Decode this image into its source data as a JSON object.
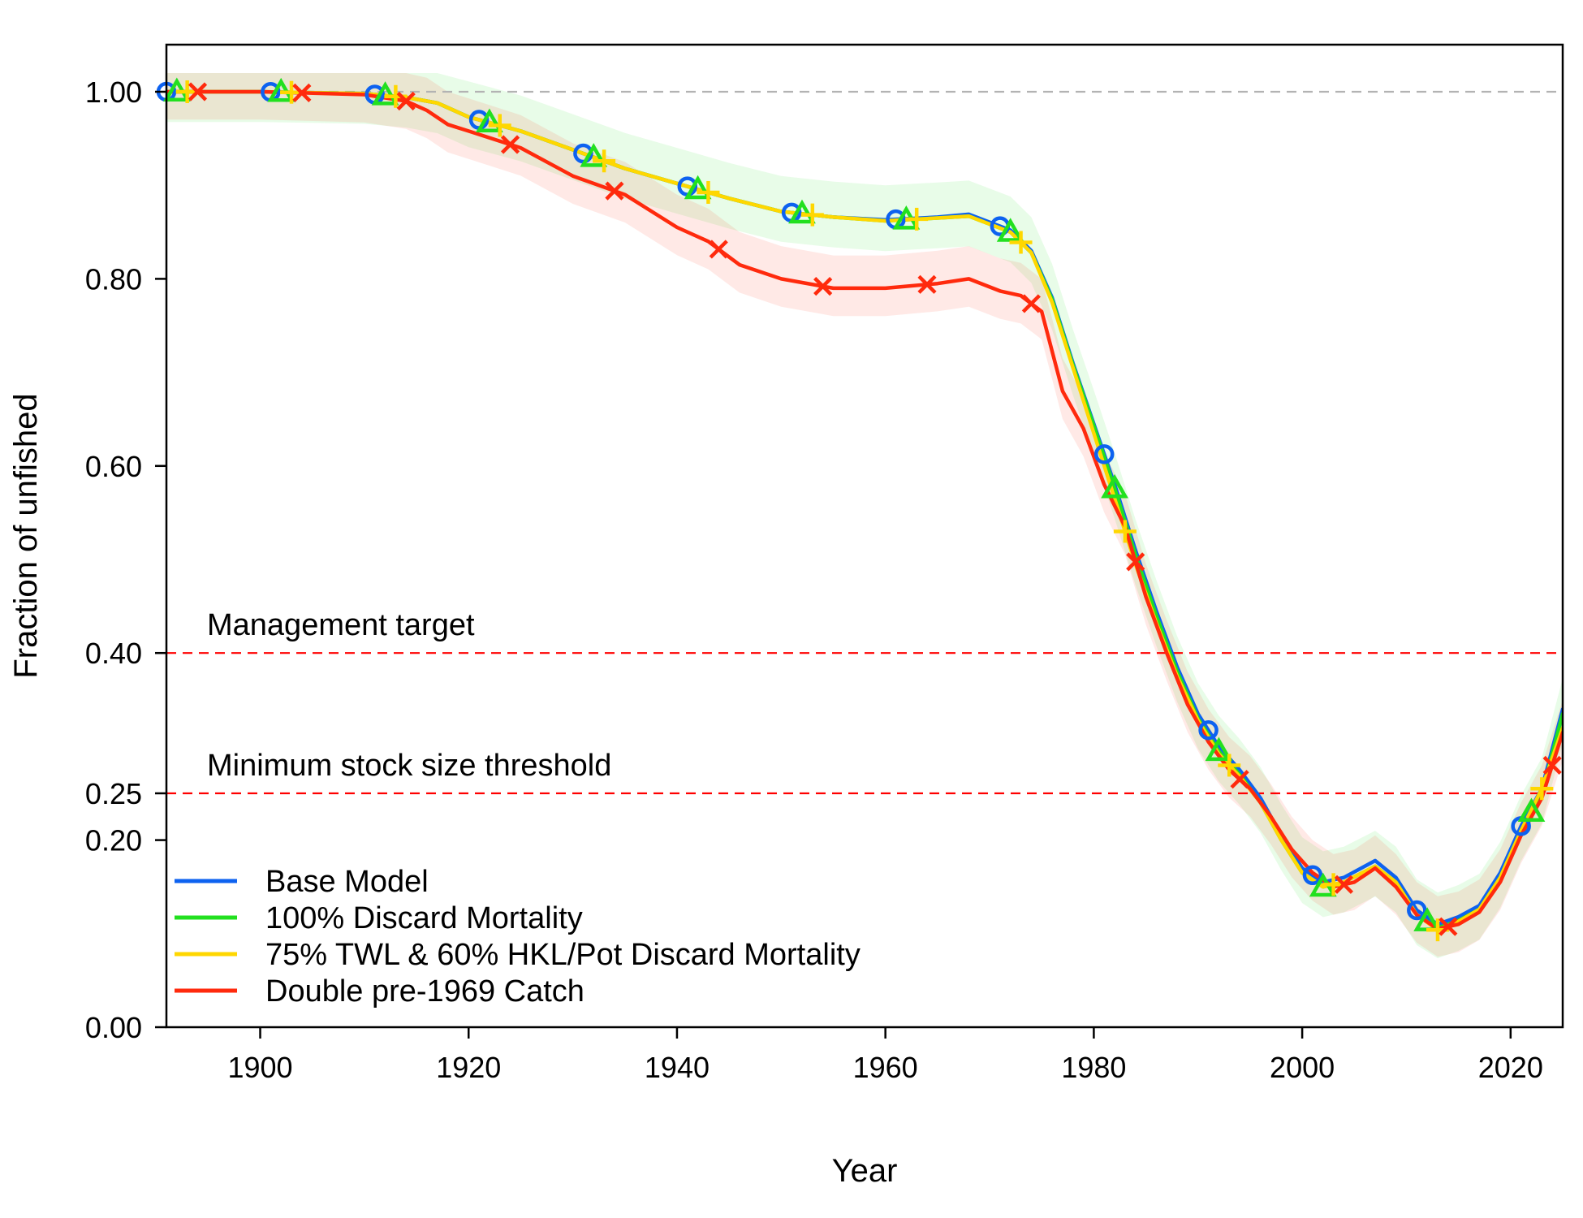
{
  "chart_data": {
    "type": "line",
    "title": "",
    "xlabel": "Year",
    "ylabel": "Fraction of unfished",
    "xlim": [
      1891,
      2025
    ],
    "ylim": [
      0,
      1.05
    ],
    "x_ticks": [
      1900,
      1920,
      1940,
      1960,
      1980,
      2000,
      2020
    ],
    "y_ticks": [
      0.0,
      0.2,
      0.25,
      0.4,
      0.6,
      0.8,
      1.0
    ],
    "y_tick_labels": [
      "0.00",
      "0.20",
      "0.25",
      "0.40",
      "0.60",
      "0.80",
      "1.00"
    ],
    "grid": false,
    "legend": "bottom-left",
    "reference_lines": [
      {
        "y": 1.0,
        "label": "",
        "color": "#b3b3b3"
      },
      {
        "y": 0.4,
        "label": "Management target",
        "color": "#ff0000"
      },
      {
        "y": 0.25,
        "label": "Minimum stock size threshold",
        "color": "#ff0000"
      }
    ],
    "series": [
      {
        "name": "Base Model",
        "color": "#0d62f0",
        "marker": "circle",
        "marker_years": [
          1891,
          1901,
          1911,
          1921,
          1931,
          1941,
          1951,
          1961,
          1971,
          1981,
          1991,
          2001,
          2011,
          2021
        ],
        "band": 0,
        "x": [
          1891,
          1900,
          1910,
          1914,
          1917,
          1920,
          1925,
          1930,
          1935,
          1940,
          1945,
          1950,
          1955,
          1960,
          1965,
          1968,
          1972,
          1974,
          1976,
          1978,
          1980,
          1982,
          1984,
          1986,
          1988,
          1990,
          1992,
          1994,
          1996,
          1998,
          2000,
          2002,
          2004,
          2007,
          2009,
          2011,
          2013,
          2015,
          2017,
          2019,
          2021,
          2023,
          2025
        ],
        "y": [
          1.0,
          1.0,
          0.998,
          0.994,
          0.988,
          0.973,
          0.958,
          0.938,
          0.918,
          0.902,
          0.886,
          0.872,
          0.866,
          0.863,
          0.866,
          0.869,
          0.852,
          0.83,
          0.78,
          0.71,
          0.645,
          0.58,
          0.51,
          0.445,
          0.385,
          0.335,
          0.3,
          0.275,
          0.245,
          0.205,
          0.17,
          0.155,
          0.16,
          0.178,
          0.16,
          0.125,
          0.11,
          0.118,
          0.13,
          0.165,
          0.215,
          0.255,
          0.34
        ]
      },
      {
        "name": "100% Discard Mortality",
        "color": "#22e01f",
        "marker": "triangle",
        "marker_years": [
          1892,
          1902,
          1912,
          1922,
          1932,
          1942,
          1952,
          1962,
          1972,
          1982,
          1992,
          2002,
          2012,
          2022
        ],
        "band": 0.038,
        "x": [
          1891,
          1900,
          1910,
          1914,
          1917,
          1920,
          1925,
          1930,
          1935,
          1940,
          1945,
          1950,
          1955,
          1960,
          1965,
          1968,
          1972,
          1974,
          1976,
          1978,
          1980,
          1982,
          1984,
          1986,
          1988,
          1990,
          1992,
          1994,
          1996,
          1998,
          2000,
          2002,
          2004,
          2007,
          2009,
          2011,
          2013,
          2015,
          2017,
          2019,
          2021,
          2023,
          2025
        ],
        "y": [
          1.0,
          1.0,
          0.998,
          0.994,
          0.988,
          0.973,
          0.958,
          0.938,
          0.918,
          0.902,
          0.886,
          0.872,
          0.866,
          0.862,
          0.865,
          0.867,
          0.85,
          0.828,
          0.778,
          0.708,
          0.643,
          0.576,
          0.505,
          0.44,
          0.38,
          0.33,
          0.295,
          0.27,
          0.24,
          0.2,
          0.165,
          0.15,
          0.155,
          0.172,
          0.155,
          0.12,
          0.106,
          0.114,
          0.126,
          0.16,
          0.21,
          0.25,
          0.335
        ]
      },
      {
        "name": "75% TWL & 60% HKL/Pot Discard Mortality",
        "color": "#ffd700",
        "marker": "plus",
        "marker_years": [
          1893,
          1903,
          1913,
          1923,
          1933,
          1943,
          1953,
          1963,
          1973,
          1983,
          1993,
          2003,
          2013,
          2023
        ],
        "band": 0,
        "x": [
          1891,
          1900,
          1910,
          1914,
          1917,
          1920,
          1925,
          1930,
          1935,
          1940,
          1945,
          1950,
          1955,
          1960,
          1965,
          1968,
          1972,
          1974,
          1976,
          1978,
          1980,
          1982,
          1984,
          1986,
          1988,
          1990,
          1992,
          1994,
          1996,
          1998,
          2000,
          2002,
          2004,
          2007,
          2009,
          2011,
          2013,
          2015,
          2017,
          2019,
          2021,
          2023,
          2025
        ],
        "y": [
          1.0,
          1.0,
          0.998,
          0.994,
          0.988,
          0.973,
          0.958,
          0.938,
          0.918,
          0.902,
          0.886,
          0.872,
          0.866,
          0.862,
          0.865,
          0.867,
          0.85,
          0.828,
          0.775,
          0.705,
          0.635,
          0.565,
          0.495,
          0.432,
          0.375,
          0.328,
          0.292,
          0.268,
          0.24,
          0.2,
          0.165,
          0.15,
          0.155,
          0.172,
          0.155,
          0.12,
          0.104,
          0.113,
          0.126,
          0.16,
          0.21,
          0.255,
          0.32
        ]
      },
      {
        "name": "Double pre-1969 Catch",
        "color": "#ff2a0d",
        "marker": "cross",
        "marker_years": [
          1894,
          1904,
          1914,
          1924,
          1934,
          1944,
          1954,
          1964,
          1974,
          1984,
          1994,
          2004,
          2014,
          2024
        ],
        "band": 0.035,
        "x": [
          1891,
          1900,
          1910,
          1914,
          1916,
          1918,
          1920,
          1925,
          1930,
          1935,
          1940,
          1943,
          1946,
          1950,
          1955,
          1960,
          1965,
          1968,
          1971,
          1973,
          1975,
          1977,
          1979,
          1981,
          1983,
          1985,
          1987,
          1989,
          1991,
          1993,
          1995,
          1997,
          1999,
          2001,
          2003,
          2005,
          2007,
          2009,
          2011,
          2013,
          2015,
          2017,
          2019,
          2021,
          2023,
          2025
        ],
        "y": [
          1.0,
          1.0,
          0.997,
          0.99,
          0.98,
          0.965,
          0.958,
          0.94,
          0.91,
          0.89,
          0.855,
          0.84,
          0.815,
          0.8,
          0.79,
          0.79,
          0.795,
          0.8,
          0.787,
          0.782,
          0.765,
          0.68,
          0.64,
          0.58,
          0.535,
          0.46,
          0.4,
          0.345,
          0.305,
          0.275,
          0.255,
          0.225,
          0.19,
          0.165,
          0.15,
          0.155,
          0.17,
          0.15,
          0.12,
          0.105,
          0.11,
          0.123,
          0.155,
          0.205,
          0.245,
          0.315
        ]
      }
    ]
  }
}
